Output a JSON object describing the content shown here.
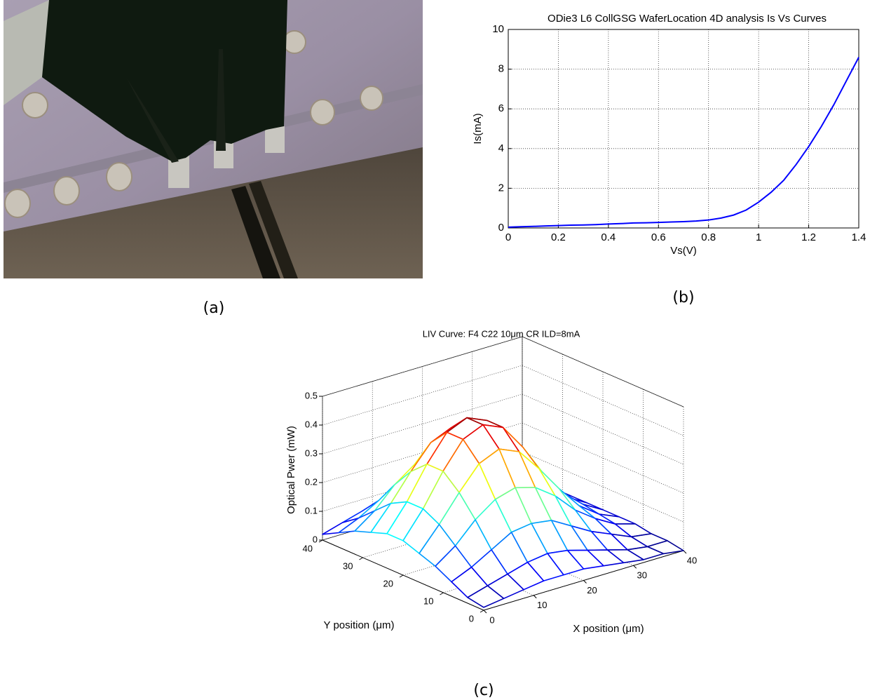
{
  "panel_a": {
    "caption": "(a)"
  },
  "chart_data": [
    {
      "type": "line",
      "title": "ODie3 L6 CollGSG WaferLocation 4D analysis Is Vs Curves",
      "x_label": "Vs(V)",
      "y_label": "Is(mA)",
      "caption": "(b)",
      "x": [
        0,
        0.05,
        0.1,
        0.15,
        0.2,
        0.25,
        0.3,
        0.35,
        0.4,
        0.45,
        0.5,
        0.55,
        0.6,
        0.65,
        0.7,
        0.75,
        0.8,
        0.85,
        0.9,
        0.95,
        1.0,
        1.05,
        1.1,
        1.15,
        1.2,
        1.25,
        1.3,
        1.35,
        1.4
      ],
      "series": [
        {
          "color": "#0000ff",
          "values": [
            0.04,
            0.06,
            0.08,
            0.1,
            0.12,
            0.14,
            0.15,
            0.17,
            0.2,
            0.22,
            0.25,
            0.26,
            0.28,
            0.3,
            0.32,
            0.35,
            0.4,
            0.5,
            0.65,
            0.9,
            1.3,
            1.8,
            2.4,
            3.2,
            4.1,
            5.1,
            6.2,
            7.4,
            8.6
          ]
        }
      ],
      "xlim": [
        0,
        1.4
      ],
      "ylim": [
        0,
        10
      ],
      "xticks": [
        0,
        0.2,
        0.4,
        0.6,
        0.8,
        1,
        1.2,
        1.4
      ],
      "yticks": [
        0,
        2,
        4,
        6,
        8,
        10
      ],
      "grid": true
    },
    {
      "type": "surface",
      "title": "LIV Curve: F4 C22 10μm CR ILD=8mA",
      "x_label": "X position (μm)",
      "y_label": "Y position (μm)",
      "z_label": "Optical Pwer (mW)",
      "caption": "(c)",
      "colormap": "jet",
      "x": [
        0,
        4,
        8,
        12,
        16,
        20,
        24,
        28,
        32,
        36,
        40
      ],
      "y": [
        0,
        4,
        8,
        12,
        16,
        20,
        24,
        28,
        32,
        36,
        40
      ],
      "z": [
        [
          0.01,
          0.02,
          0.03,
          0.04,
          0.04,
          0.04,
          0.03,
          0.02,
          0.01,
          0.01,
          0.0
        ],
        [
          0.02,
          0.04,
          0.06,
          0.08,
          0.09,
          0.08,
          0.06,
          0.04,
          0.02,
          0.01,
          0.01
        ],
        [
          0.05,
          0.08,
          0.12,
          0.16,
          0.17,
          0.16,
          0.12,
          0.08,
          0.05,
          0.02,
          0.01
        ],
        [
          0.08,
          0.13,
          0.2,
          0.25,
          0.27,
          0.25,
          0.2,
          0.13,
          0.08,
          0.04,
          0.02
        ],
        [
          0.1,
          0.18,
          0.27,
          0.35,
          0.38,
          0.35,
          0.27,
          0.18,
          0.1,
          0.05,
          0.02
        ],
        [
          0.12,
          0.21,
          0.32,
          0.41,
          0.44,
          0.41,
          0.32,
          0.21,
          0.12,
          0.06,
          0.02
        ],
        [
          0.12,
          0.21,
          0.32,
          0.41,
          0.44,
          0.41,
          0.32,
          0.21,
          0.12,
          0.06,
          0.02
        ],
        [
          0.1,
          0.18,
          0.27,
          0.35,
          0.38,
          0.35,
          0.27,
          0.18,
          0.1,
          0.05,
          0.02
        ],
        [
          0.08,
          0.13,
          0.2,
          0.25,
          0.27,
          0.25,
          0.2,
          0.13,
          0.08,
          0.04,
          0.02
        ],
        [
          0.05,
          0.08,
          0.12,
          0.16,
          0.17,
          0.16,
          0.12,
          0.08,
          0.05,
          0.02,
          0.01
        ],
        [
          0.02,
          0.04,
          0.06,
          0.08,
          0.09,
          0.08,
          0.06,
          0.04,
          0.02,
          0.01,
          0.01
        ]
      ],
      "xlim": [
        0,
        40
      ],
      "ylim": [
        0,
        40
      ],
      "zlim": [
        0,
        0.5
      ],
      "xticks": [
        0,
        10,
        20,
        30,
        40
      ],
      "yticks": [
        0,
        10,
        20,
        30,
        40
      ],
      "zticks": [
        0,
        0.1,
        0.2,
        0.3,
        0.4,
        0.5
      ],
      "grid": true
    }
  ]
}
